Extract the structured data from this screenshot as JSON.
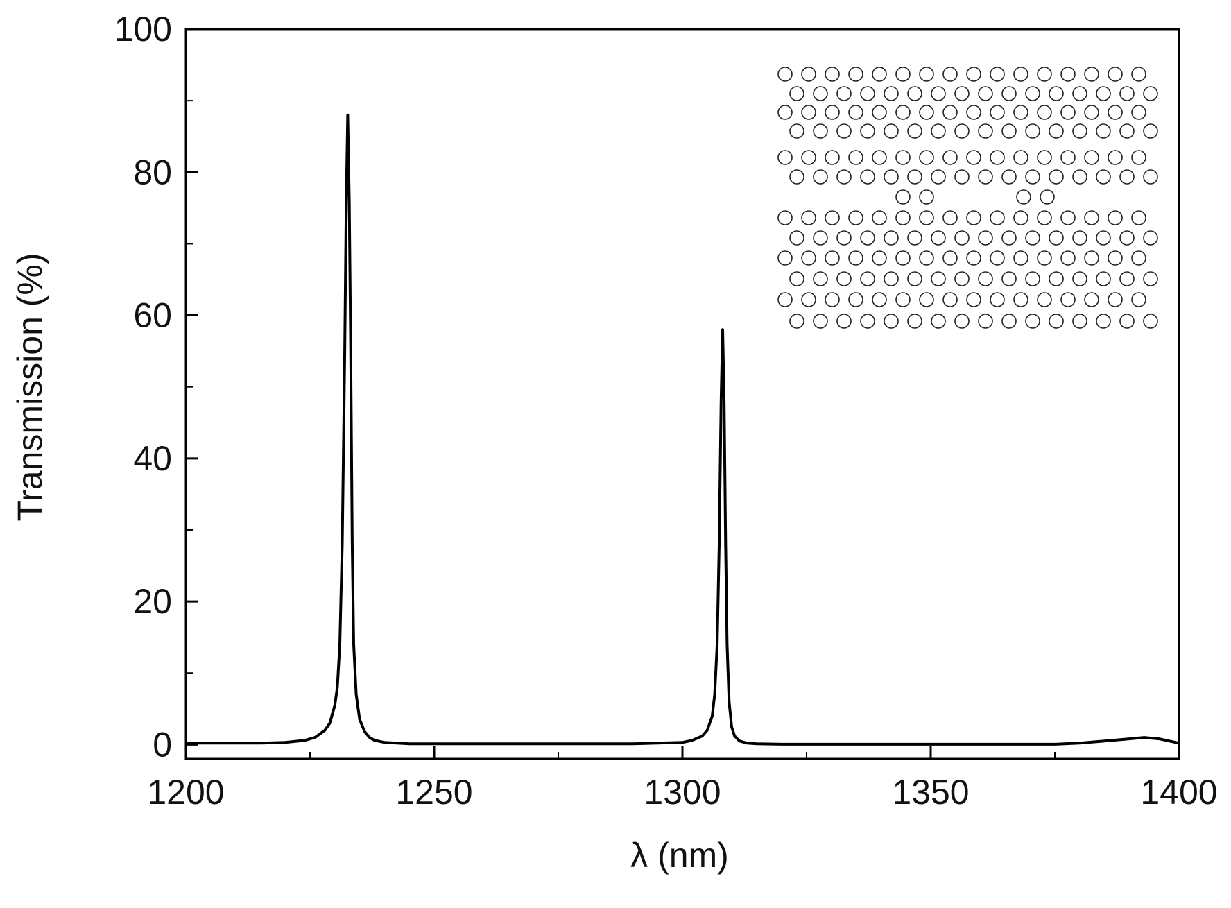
{
  "chart_data": {
    "type": "line",
    "title": "",
    "xlabel": "λ (nm)",
    "ylabel": "Transmission (%)",
    "xlim": [
      1200,
      1400
    ],
    "ylim": [
      -2,
      100
    ],
    "x_ticks": [
      1200,
      1250,
      1300,
      1350,
      1400
    ],
    "x_tick_labels": [
      "1200",
      "1250",
      "1300",
      "1350",
      "1400"
    ],
    "x_minor_ticks": [
      1225,
      1275,
      1325,
      1375
    ],
    "y_ticks": [
      0,
      20,
      40,
      60,
      80,
      100
    ],
    "y_tick_labels": [
      "0",
      "20",
      "40",
      "60",
      "80",
      "100"
    ],
    "y_minor_ticks": [
      10,
      30,
      50,
      70,
      90
    ],
    "grid": false,
    "legend": "none",
    "line_color": "#000000",
    "series": [
      {
        "x": [
          1200,
          1210,
          1215,
          1220,
          1224,
          1226,
          1228,
          1229,
          1230,
          1230.5,
          1231,
          1231.5,
          1232,
          1232.3,
          1232.6,
          1232.9,
          1233.2,
          1233.5,
          1233.8,
          1234.3,
          1235,
          1236,
          1237,
          1238,
          1240,
          1245,
          1250,
          1260,
          1270,
          1280,
          1290,
          1295,
          1300,
          1302,
          1304,
          1305,
          1306,
          1306.5,
          1307,
          1307.4,
          1307.8,
          1308.1,
          1308.4,
          1308.7,
          1309,
          1309.4,
          1309.9,
          1310.5,
          1311.5,
          1313,
          1315,
          1320,
          1330,
          1340,
          1350,
          1360,
          1370,
          1375,
          1380,
          1385,
          1390,
          1393,
          1396,
          1398,
          1400
        ],
        "y": [
          0.2,
          0.2,
          0.2,
          0.3,
          0.6,
          1.0,
          2.0,
          3.0,
          5.5,
          8.0,
          14.0,
          28.0,
          55.0,
          76.0,
          88.0,
          76.0,
          55.0,
          28.0,
          14.0,
          7.0,
          3.5,
          1.8,
          1.0,
          0.6,
          0.3,
          0.1,
          0.1,
          0.1,
          0.1,
          0.1,
          0.1,
          0.2,
          0.3,
          0.6,
          1.2,
          2.0,
          4.0,
          7.0,
          14.0,
          28.0,
          48.0,
          58.0,
          48.0,
          28.0,
          14.0,
          6.0,
          2.5,
          1.2,
          0.5,
          0.2,
          0.1,
          0.05,
          0.05,
          0.05,
          0.05,
          0.05,
          0.05,
          0.05,
          0.2,
          0.5,
          0.8,
          1.0,
          0.8,
          0.5,
          0.2
        ]
      }
    ]
  }
}
